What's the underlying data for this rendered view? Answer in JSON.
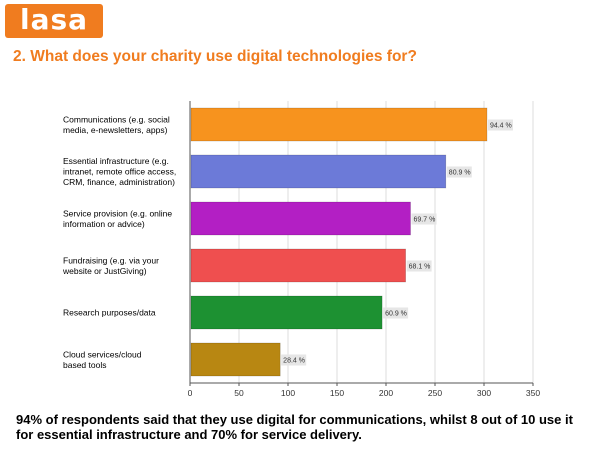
{
  "logo": {
    "text": "lasa"
  },
  "question": "2. What does your charity use digital technologies for?",
  "chart_data": {
    "type": "bar",
    "orientation": "horizontal",
    "title": "",
    "xlabel": "",
    "ylabel": "",
    "xlim": [
      0,
      350
    ],
    "ticks": [
      0,
      50,
      100,
      150,
      200,
      250,
      300,
      350
    ],
    "grid": true,
    "categories": [
      [
        "Communications (e.g. social",
        "media, e-newsletters, apps)"
      ],
      [
        "Essential infrastructure (e.g.",
        "intranet, remote office access,",
        "CRM, finance, administration)"
      ],
      [
        "Service provision (e.g. online",
        "information or advice)"
      ],
      [
        "Fundraising (e.g. via your",
        "website or JustGiving)"
      ],
      [
        "Research purposes/data"
      ],
      [
        "Cloud services/cloud",
        "based tools"
      ]
    ],
    "values": [
      302,
      260,
      224,
      219,
      195,
      91
    ],
    "value_labels": [
      "94.4 %",
      "80.9 %",
      "69.7 %",
      "68.1 %",
      "60.9 %",
      "28.4 %"
    ],
    "colors": [
      "#f7931e",
      "#6c7ad8",
      "#b31fc4",
      "#ef4f4f",
      "#1d9132",
      "#b88712"
    ]
  },
  "footnote": "94% of respondents said that they use digital for communications, whilst  8 out of 10 use it for essential infrastructure and 70% for service delivery."
}
